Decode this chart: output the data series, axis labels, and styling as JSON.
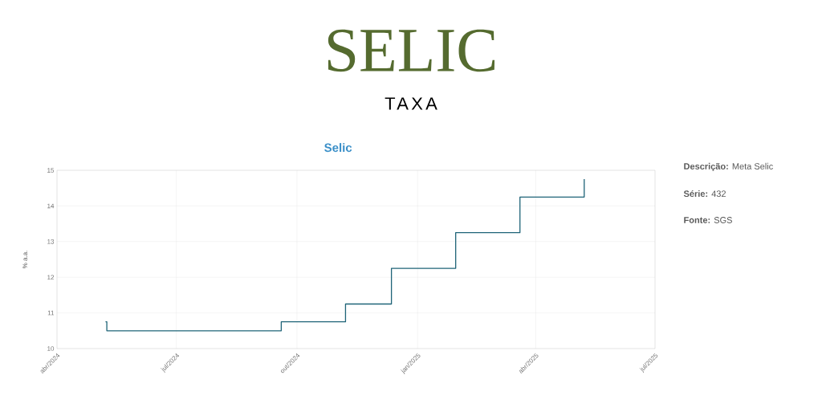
{
  "chart_data": {
    "type": "step",
    "title": "Selic",
    "ylabel": "% a.a.",
    "annotations": [
      "SELIC",
      "TAXA",
      "**Descrição:** Meta Selic",
      "**Série:** 432",
      "**Fonte:** SGS"
    ],
    "x": [
      "2024-05-08",
      "2024-05-09",
      "2024-09-19",
      "2024-11-07",
      "2024-12-12",
      "2025-01-30",
      "2025-03-20",
      "2025-05-08"
    ],
    "series": [
      {
        "color": "#1f6478",
        "values": [
          10.75,
          10.5,
          10.75,
          11.25,
          12.25,
          13.25,
          14.25,
          14.75
        ]
      }
    ],
    "xlim": [
      "2024-04-01",
      "2025-07-01"
    ],
    "xticks": [
      {
        "value": "2024-04-01",
        "label": "abr/2024"
      },
      {
        "value": "2024-07-01",
        "label": "jul/2024"
      },
      {
        "value": "2024-10-01",
        "label": "out/2024"
      },
      {
        "value": "2025-01-01",
        "label": "jan/2025"
      },
      {
        "value": "2025-04-01",
        "label": "abr/2025"
      },
      {
        "value": "2025-07-01",
        "label": "jul/2025"
      }
    ],
    "ylim": [
      10,
      15
    ],
    "yticks": [
      10,
      11,
      12,
      13,
      14,
      15
    ],
    "grid": true
  }
}
